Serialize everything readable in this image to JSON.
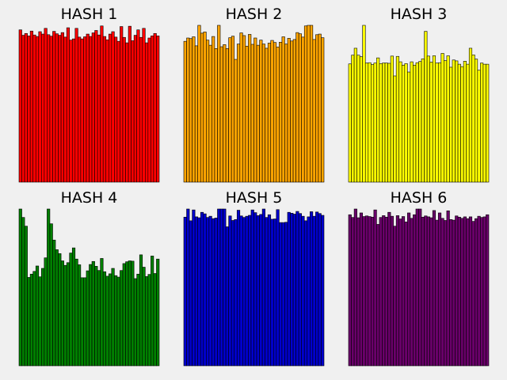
{
  "chart_data": [
    {
      "type": "bar",
      "title": "HASH 1",
      "color": "#ff0000",
      "ylim": [
        0,
        52
      ],
      "values": [
        50.5,
        48.7,
        49.3,
        48.5,
        50.1,
        48.8,
        48.3,
        49.9,
        49.1,
        51.0,
        48.9,
        48.4,
        50.0,
        49.2,
        48.7,
        49.6,
        48.1,
        51.2,
        47.1,
        47.5,
        51.0,
        48.1,
        47.5,
        48.2,
        49.1,
        48.3,
        49.5,
        50.3,
        48.8,
        51.8,
        48.3,
        47.2,
        49.1,
        49.9,
        48.1,
        46.7,
        51.6,
        48.0,
        46.2,
        51.7,
        46.9,
        48.7,
        50.5,
        48.0,
        51.0,
        46.2,
        47.8,
        48.5,
        49.3,
        48.5
      ]
    },
    {
      "type": "bar",
      "title": "HASH 2",
      "color": "#ffa500",
      "ylim": [
        0,
        52
      ],
      "values": [
        46.7,
        47.8,
        47.6,
        48.2,
        45.2,
        52.1,
        49.4,
        49.8,
        47.1,
        45.4,
        48.3,
        44.3,
        52.3,
        44.9,
        45.6,
        44.3,
        47.9,
        48.4,
        40.7,
        45.8,
        49.5,
        48.6,
        45.1,
        49.0,
        45.7,
        47.8,
        45.4,
        47.1,
        45.8,
        44.4,
        46.1,
        47.0,
        46.3,
        44.8,
        46.4,
        48.2,
        45.8,
        47.7,
        46.8,
        47.3,
        49.6,
        49.2,
        48.1,
        51.8,
        52.1,
        52.2,
        47.3,
        48.9,
        49.1,
        47.9
      ]
    },
    {
      "type": "bar",
      "title": "HASH 3",
      "color": "#ffff00",
      "ylim": [
        0,
        52
      ],
      "values": [
        39.2,
        42.1,
        44.4,
        42.1,
        41.6,
        52.6,
        39.5,
        39.6,
        39.0,
        39.5,
        41.2,
        39.3,
        39.5,
        39.5,
        39.4,
        41.8,
        35.2,
        41.7,
        39.9,
        38.8,
        39.3,
        36.5,
        39.9,
        38.8,
        39.6,
        40.0,
        40.9,
        50.0,
        41.8,
        39.8,
        41.9,
        39.5,
        39.6,
        42.7,
        40.3,
        41.9,
        38.1,
        40.5,
        40.2,
        39.1,
        38.3,
        40.1,
        39.1,
        44.4,
        42.2,
        40.8,
        37.1,
        39.5,
        39.1,
        39.1
      ]
    },
    {
      "type": "bar",
      "title": "HASH 4",
      "color": "#008000",
      "ylim": [
        0,
        52
      ],
      "values": [
        53.2,
        49.2,
        46.3,
        29.3,
        30.4,
        31.3,
        33.1,
        29.5,
        32.3,
        35.8,
        52.1,
        47.1,
        41.7,
        38.5,
        37.2,
        34.8,
        33.3,
        34.2,
        37.4,
        39.1,
        35.4,
        33.5,
        29.2,
        29.2,
        31.5,
        33.6,
        34.6,
        33.0,
        31.6,
        35.6,
        31.2,
        29.7,
        30.5,
        32.3,
        29.9,
        29.4,
        31.6,
        33.9,
        34.5,
        34.8,
        34.7,
        28.9,
        30.4,
        36.8,
        32.7,
        29.6,
        30.3,
        36.4,
        30.6,
        35.4
      ]
    },
    {
      "type": "bar",
      "title": "HASH 5",
      "color": "#0000cd",
      "ylim": [
        0,
        52
      ],
      "values": [
        49.3,
        52.0,
        48.1,
        51.7,
        49.4,
        49.1,
        50.9,
        50.4,
        49.2,
        49.6,
        48.8,
        49.0,
        52.7,
        52.0,
        52.9,
        46.1,
        49.7,
        48.2,
        48.5,
        51.6,
        49.7,
        49.2,
        49.6,
        49.9,
        51.7,
        50.8,
        49.8,
        50.2,
        53.2,
        49.2,
        50.1,
        48.6,
        48.7,
        51.8,
        47.5,
        47.5,
        47.6,
        50.9,
        50.6,
        50.3,
        51.2,
        50.5,
        49.6,
        48.1,
        49.4,
        51.1,
        49.6,
        51.0,
        50.5,
        49.9
      ]
    },
    {
      "type": "bar",
      "title": "HASH 6",
      "color": "#6a006a",
      "ylim": [
        0,
        52
      ],
      "values": [
        50.1,
        49.2,
        53.2,
        49.1,
        50.7,
        49.5,
        49.7,
        49.5,
        49.3,
        51.7,
        46.9,
        49.2,
        49.8,
        49.3,
        50.9,
        49.6,
        46.3,
        49.8,
        48.7,
        49.5,
        47.7,
        50.7,
        48.9,
        50.1,
        53.4,
        52.7,
        49.3,
        49.7,
        49.4,
        49.1,
        51.5,
        48.3,
        50.7,
        48.9,
        48.2,
        51.4,
        48.5,
        48.3,
        49.7,
        49.3,
        48.9,
        49.4,
        48.8,
        49.4,
        47.9,
        48.8,
        49.6,
        49.2,
        49.4,
        50.1
      ]
    }
  ]
}
